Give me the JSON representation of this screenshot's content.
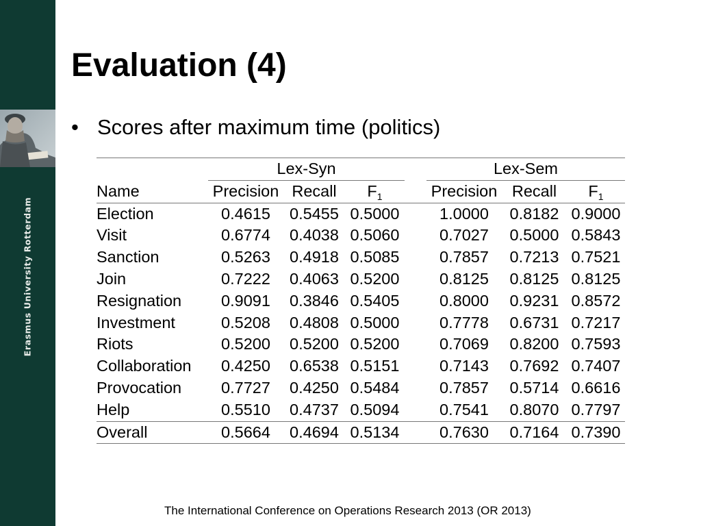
{
  "sidebar": {
    "institution": "Erasmus University Rotterdam",
    "background_color": "#0f3a32",
    "portrait_icon": "erasmus-portrait-icon"
  },
  "slide": {
    "title": "Evaluation (4)",
    "bullet": "Scores after maximum time (politics)"
  },
  "table": {
    "groups": [
      "Lex-Syn",
      "Lex-Sem"
    ],
    "name_header": "Name",
    "metric_headers": [
      "Precision",
      "Recall",
      "F"
    ],
    "f1_subscript": "1",
    "rows": [
      [
        "Election",
        "0.4615",
        "0.5455",
        "0.5000",
        "1.0000",
        "0.8182",
        "0.9000"
      ],
      [
        "Visit",
        "0.6774",
        "0.4038",
        "0.5060",
        "0.7027",
        "0.5000",
        "0.5843"
      ],
      [
        "Sanction",
        "0.5263",
        "0.4918",
        "0.5085",
        "0.7857",
        "0.7213",
        "0.7521"
      ],
      [
        "Join",
        "0.7222",
        "0.4063",
        "0.5200",
        "0.8125",
        "0.8125",
        "0.8125"
      ],
      [
        "Resignation",
        "0.9091",
        "0.3846",
        "0.5405",
        "0.8000",
        "0.9231",
        "0.8572"
      ],
      [
        "Investment",
        "0.5208",
        "0.4808",
        "0.5000",
        "0.7778",
        "0.6731",
        "0.7217"
      ],
      [
        "Riots",
        "0.5200",
        "0.5200",
        "0.5200",
        "0.7069",
        "0.8200",
        "0.7593"
      ],
      [
        "Collaboration",
        "0.4250",
        "0.6538",
        "0.5151",
        "0.7143",
        "0.7692",
        "0.7407"
      ],
      [
        "Provocation",
        "0.7727",
        "0.4250",
        "0.5484",
        "0.7857",
        "0.5714",
        "0.6616"
      ],
      [
        "Help",
        "0.5510",
        "0.4737",
        "0.5094",
        "0.7541",
        "0.8070",
        "0.7797"
      ]
    ],
    "overall": [
      "Overall",
      "0.5664",
      "0.4694",
      "0.5134",
      "0.7630",
      "0.7164",
      "0.7390"
    ]
  },
  "footer": "The International Conference on Operations Research 2013 (OR 2013)"
}
